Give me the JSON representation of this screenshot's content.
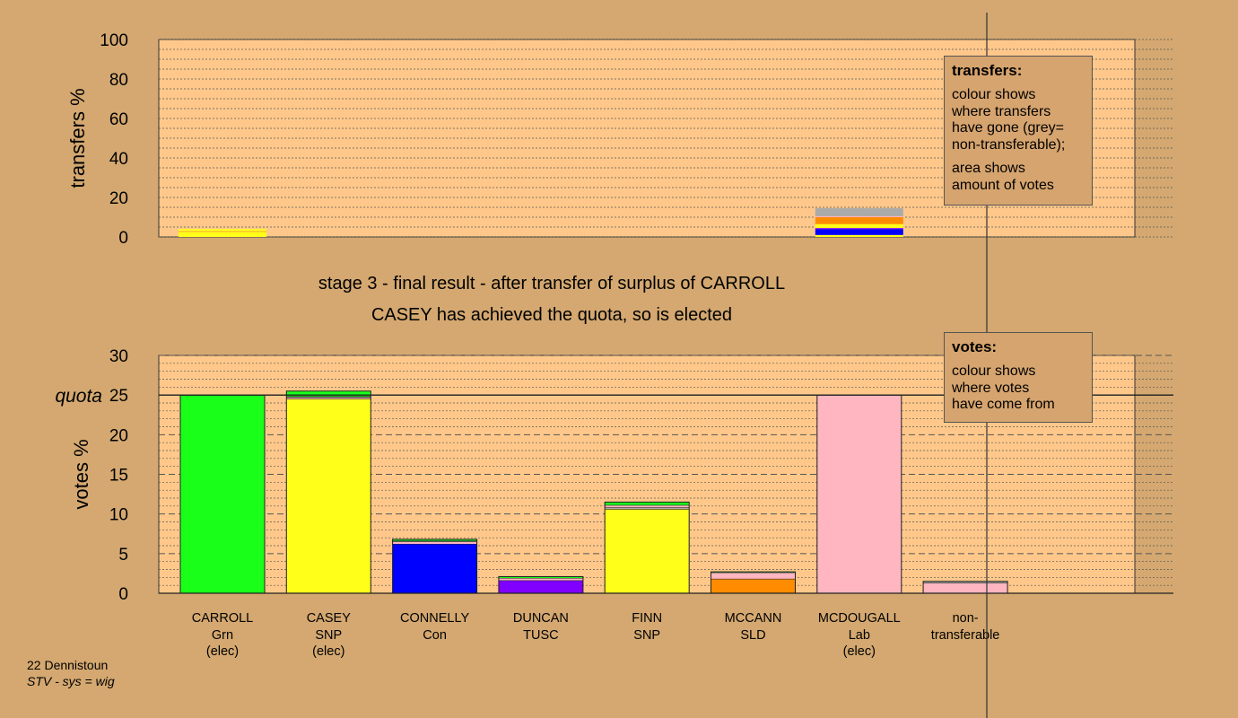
{
  "chart_data": [
    {
      "type": "bar",
      "name": "transfers",
      "ylabel": "transfers %",
      "ylim": [
        0,
        100
      ],
      "yticks": [
        0,
        20,
        40,
        60,
        80,
        100
      ],
      "stacked": true,
      "bars": [
        {
          "x_index": 0,
          "segments": [
            {
              "color": "#FFFF1A",
              "value": 2.5
            },
            {
              "color": "#FFAA33",
              "value": 0.5
            },
            {
              "color": "#FFFF1A",
              "value": 1.0
            }
          ]
        },
        {
          "x_index": 6,
          "segments": [
            {
              "color": "#FFFF1A",
              "value": 1.0
            },
            {
              "color": "#0000FF",
              "value": 3.0
            },
            {
              "color": "#8000FF",
              "value": 0.5
            },
            {
              "color": "#FFFF1A",
              "value": 2.0
            },
            {
              "color": "#FF8C00",
              "value": 3.5
            },
            {
              "color": "#FFB6C1",
              "value": 0.5
            },
            {
              "color": "#AAAAAA",
              "value": 4.0
            }
          ]
        }
      ]
    },
    {
      "type": "bar",
      "name": "votes",
      "ylabel": "votes %",
      "ylim": [
        0,
        30
      ],
      "yticks": [
        0,
        5,
        10,
        15,
        20,
        25,
        30
      ],
      "quota": 25,
      "quota_label": "quota",
      "stacked": true,
      "categories": [
        {
          "name": "CARROLL",
          "party": "Grn",
          "elected": "(elec)"
        },
        {
          "name": "CASEY",
          "party": "SNP",
          "elected": "(elec)"
        },
        {
          "name": "CONNELLY",
          "party": "Con",
          "elected": ""
        },
        {
          "name": "DUNCAN",
          "party": "TUSC",
          "elected": ""
        },
        {
          "name": "FINN",
          "party": "SNP",
          "elected": ""
        },
        {
          "name": "MCCANN",
          "party": "SLD",
          "elected": ""
        },
        {
          "name": "MCDOUGALL",
          "party": "Lab",
          "elected": "(elec)"
        },
        {
          "name": "non-",
          "party": "transferable",
          "elected": ""
        }
      ],
      "bars": [
        {
          "x_index": 0,
          "segments": [
            {
              "color": "#1AFF1A",
              "value": 25.0
            }
          ]
        },
        {
          "x_index": 1,
          "segments": [
            {
              "color": "#FFFF1A",
              "value": 24.5
            },
            {
              "color": "#FFB6C1",
              "value": 0.2
            },
            {
              "color": "#AAAAAA",
              "value": 0.1
            },
            {
              "color": "#1AFF1A",
              "value": 0.7
            }
          ]
        },
        {
          "x_index": 2,
          "segments": [
            {
              "color": "#0000FF",
              "value": 6.2
            },
            {
              "color": "#FFB6C1",
              "value": 0.3
            },
            {
              "color": "#AAAAAA",
              "value": 0.1
            },
            {
              "color": "#1AFF1A",
              "value": 0.2
            }
          ]
        },
        {
          "x_index": 3,
          "segments": [
            {
              "color": "#8000FF",
              "value": 1.6
            },
            {
              "color": "#FFB6C1",
              "value": 0.3
            },
            {
              "color": "#1AFF1A",
              "value": 0.2
            }
          ]
        },
        {
          "x_index": 4,
          "segments": [
            {
              "color": "#FFFF1A",
              "value": 10.6
            },
            {
              "color": "#AAAAAA",
              "value": 0.2
            },
            {
              "color": "#FFB6C1",
              "value": 0.3
            },
            {
              "color": "#1AFF1A",
              "value": 0.4
            }
          ]
        },
        {
          "x_index": 5,
          "segments": [
            {
              "color": "#FF8C00",
              "value": 1.8
            },
            {
              "color": "#FFB6C1",
              "value": 0.8
            },
            {
              "color": "#1AFF1A",
              "value": 0.1
            }
          ]
        },
        {
          "x_index": 6,
          "segments": [
            {
              "color": "#FFB6C1",
              "value": 25.0
            }
          ]
        },
        {
          "x_index": 7,
          "segments": [
            {
              "color": "#FFB6C1",
              "value": 1.3
            },
            {
              "color": "#AAAAAA",
              "value": 0.2
            }
          ]
        }
      ]
    }
  ],
  "captions": {
    "line1": "stage 3 - final result - after transfer of surplus of CARROLL",
    "line2": "CASEY has achieved the quota, so is elected"
  },
  "legend_transfers": {
    "title": "transfers:",
    "line1": "colour shows\nwhere transfers\nhave gone (grey=\nnon-transferable);",
    "line2": "area shows\namount of votes"
  },
  "legend_votes": {
    "title": "votes:",
    "line1": "colour shows\nwhere votes\nhave come from"
  },
  "footer": {
    "ward": "22 Dennistoun",
    "system": "STV - sys = wig"
  },
  "colors": {
    "background": "#D4A870",
    "plot_area": "#FFC88A",
    "grey": "#AAAAAA"
  }
}
